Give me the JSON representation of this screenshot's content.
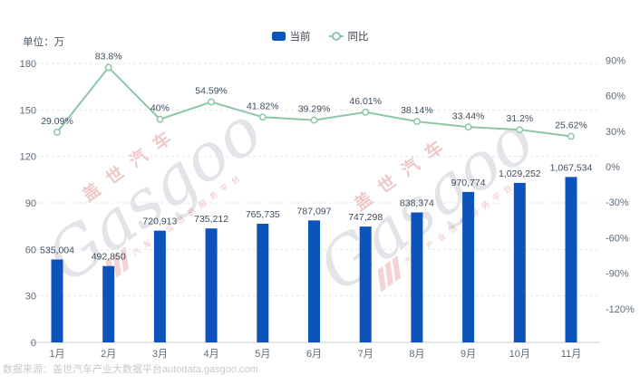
{
  "header": {
    "unit_label": "单位：万"
  },
  "legend": [
    {
      "label": "当前",
      "type": "bar",
      "color": "#0d53bc"
    },
    {
      "label": "同比",
      "type": "line",
      "color": "#8fc6a7"
    }
  ],
  "chart_data": {
    "type": "bar+line combo",
    "categories": [
      "1月",
      "2月",
      "3月",
      "4月",
      "5月",
      "6月",
      "7月",
      "8月",
      "9月",
      "10月",
      "11月"
    ],
    "series": [
      {
        "name": "当前",
        "type": "bar",
        "axis": "left",
        "color": "#0d53bc",
        "values": [
          535004,
          492850,
          720913,
          735212,
          765735,
          787097,
          747298,
          838374,
          970774,
          1029252,
          1067534
        ],
        "labels": [
          "535,004",
          "492,850",
          "720,913",
          "735,212",
          "765,735",
          "787,097",
          "747,298",
          "838,374",
          "970,774",
          "1,029,252",
          "1,067,534"
        ]
      },
      {
        "name": "同比",
        "type": "line",
        "axis": "right",
        "color": "#8fc6a7",
        "values": [
          29.09,
          83.8,
          40,
          54.59,
          41.82,
          39.29,
          46.01,
          38.14,
          33.44,
          31.2,
          25.62
        ],
        "labels": [
          "29.09%",
          "83.8%",
          "40%",
          "54.59%",
          "41.82%",
          "39.29%",
          "46.01%",
          "38.14%",
          "33.44%",
          "31.2%",
          "25.62%"
        ]
      }
    ],
    "left_axis": {
      "unit": "万",
      "range": [
        0,
        180
      ],
      "ticks": [
        0,
        30,
        60,
        90,
        120,
        150,
        180
      ],
      "tick_labels": [
        "0",
        "30",
        "60",
        "90",
        "120",
        "150",
        "180"
      ]
    },
    "right_axis": {
      "ticks": [
        90,
        60,
        30,
        0,
        -30,
        -60,
        -90,
        -120
      ],
      "tick_labels": [
        "90%",
        "60%",
        "30%",
        "0%",
        "-30%",
        "-60%",
        "-90%",
        "-120%"
      ]
    },
    "grid": {
      "horizontal_dashed": true,
      "legend_position": "top-center"
    },
    "title": ""
  },
  "watermark": {
    "brand_cn": "盖世汽车",
    "brand_en": "Gasgoo",
    "tagline": "汽车产业信息服务平台"
  },
  "footer": {
    "source_text": "数据来源：盖世汽车产业大数据平台autodata.gasgoo.com"
  },
  "colors": {
    "bar": "#0d53bc",
    "line": "#8fc6a7",
    "grid": "#e2e6ea",
    "axis_line": "#c9ced4",
    "tick_text": "#5c6b79",
    "data_label": "#3d4d5d"
  }
}
